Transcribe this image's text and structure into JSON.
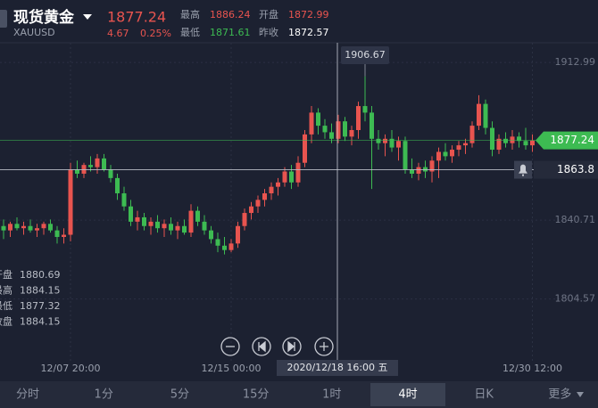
{
  "header": {
    "name": "现货黄金",
    "symbol": "XAUUSD",
    "price": "1877.24",
    "change": "4.67",
    "change_pct": "0.25%",
    "high_label": "最高",
    "high": "1886.24",
    "open_label": "开盘",
    "open": "1872.99",
    "low_label": "最低",
    "low": "1871.61",
    "prev_close_label": "昨收",
    "prev_close": "1872.57"
  },
  "ohlc_info": [
    {
      "label": "开盘",
      "value": "1880.69"
    },
    {
      "label": "最高",
      "value": "1884.15"
    },
    {
      "label": "最低",
      "value": "1877.32"
    },
    {
      "label": "收盘",
      "value": "1884.15"
    }
  ],
  "chart_data": {
    "type": "candlestick",
    "up_color": "#e8544f",
    "down_color": "#3dbb52",
    "ylim": [
      1776.23,
      1922.02
    ],
    "yticks": [
      1912.99,
      1840.71,
      1804.57
    ],
    "grid": true,
    "last_price": 1877.24,
    "alert_price": 1863.8,
    "crosshair_label": "2020/12/18 16:00 五",
    "categories": [
      null,
      null,
      null,
      null,
      null,
      null,
      null,
      null,
      null,
      null,
      "12/07 20:00",
      null,
      null,
      null,
      null,
      null,
      null,
      null,
      null,
      null,
      null,
      null,
      null,
      null,
      null,
      null,
      null,
      null,
      null,
      null,
      null,
      null,
      null,
      null,
      "12/15 00:00",
      null,
      null,
      null,
      null,
      null,
      null,
      null,
      null,
      null,
      null,
      null,
      null,
      null,
      null,
      null,
      null,
      null,
      null,
      null,
      null,
      null,
      null,
      null,
      null,
      null,
      null,
      null,
      null,
      null,
      null,
      null,
      null,
      null,
      null,
      null,
      null,
      null,
      null,
      null,
      null,
      null,
      null,
      null,
      null,
      "12/30 12:00"
    ],
    "candles": [
      [
        1838,
        1841,
        1832,
        1836
      ],
      [
        1836,
        1840,
        1833,
        1839
      ],
      [
        1839,
        1842,
        1836,
        1837
      ],
      [
        1837,
        1840,
        1834,
        1838
      ],
      [
        1838,
        1841,
        1835,
        1836
      ],
      [
        1836,
        1839,
        1833,
        1837
      ],
      [
        1837,
        1840,
        1834,
        1839
      ],
      [
        1839,
        1841,
        1835,
        1836
      ],
      [
        1836,
        1838,
        1830,
        1833
      ],
      [
        1833,
        1837,
        1830,
        1834
      ],
      [
        1834,
        1867,
        1831,
        1864
      ],
      [
        1864,
        1868,
        1860,
        1862
      ],
      [
        1862,
        1867,
        1860,
        1866
      ],
      [
        1866,
        1870,
        1863,
        1865
      ],
      [
        1865,
        1871,
        1862,
        1869
      ],
      [
        1869,
        1871,
        1863,
        1864
      ],
      [
        1864,
        1866,
        1858,
        1860
      ],
      [
        1860,
        1862,
        1850,
        1853
      ],
      [
        1853,
        1856,
        1845,
        1847
      ],
      [
        1847,
        1850,
        1838,
        1840
      ],
      [
        1840,
        1845,
        1836,
        1842
      ],
      [
        1842,
        1844,
        1836,
        1838
      ],
      [
        1838,
        1842,
        1834,
        1840
      ],
      [
        1840,
        1843,
        1835,
        1837
      ],
      [
        1837,
        1841,
        1833,
        1839
      ],
      [
        1839,
        1842,
        1834,
        1836
      ],
      [
        1836,
        1840,
        1832,
        1838
      ],
      [
        1838,
        1841,
        1834,
        1835
      ],
      [
        1835,
        1848,
        1833,
        1845
      ],
      [
        1845,
        1847,
        1838,
        1840
      ],
      [
        1840,
        1843,
        1834,
        1836
      ],
      [
        1836,
        1838,
        1830,
        1832
      ],
      [
        1832,
        1835,
        1826,
        1829
      ],
      [
        1829,
        1833,
        1825,
        1827
      ],
      [
        1827,
        1832,
        1826,
        1830
      ],
      [
        1830,
        1840,
        1828,
        1838
      ],
      [
        1838,
        1846,
        1836,
        1844
      ],
      [
        1844,
        1849,
        1841,
        1847
      ],
      [
        1847,
        1852,
        1844,
        1850
      ],
      [
        1850,
        1855,
        1847,
        1853
      ],
      [
        1853,
        1858,
        1850,
        1856
      ],
      [
        1856,
        1860,
        1852,
        1858
      ],
      [
        1858,
        1865,
        1856,
        1863
      ],
      [
        1863,
        1866,
        1855,
        1858
      ],
      [
        1858,
        1870,
        1856,
        1867
      ],
      [
        1867,
        1882,
        1865,
        1880
      ],
      [
        1880,
        1893,
        1876,
        1890
      ],
      [
        1890,
        1892,
        1880,
        1884
      ],
      [
        1884,
        1887,
        1878,
        1881
      ],
      [
        1881,
        1885,
        1876,
        1878
      ],
      [
        1878,
        1889,
        1876,
        1886
      ],
      [
        1886,
        1888,
        1877,
        1879
      ],
      [
        1879,
        1884,
        1875,
        1882
      ],
      [
        1882,
        1895,
        1878,
        1893
      ],
      [
        1893,
        1906.67,
        1886,
        1890
      ],
      [
        1890,
        1893,
        1855,
        1878
      ],
      [
        1878,
        1882,
        1873,
        1876
      ],
      [
        1876,
        1880,
        1870,
        1878
      ],
      [
        1878,
        1882,
        1872,
        1874
      ],
      [
        1874,
        1879,
        1868,
        1877
      ],
      [
        1877,
        1879,
        1862,
        1864
      ],
      [
        1864,
        1869,
        1860,
        1862
      ],
      [
        1862,
        1867,
        1859,
        1865
      ],
      [
        1865,
        1868,
        1860,
        1863
      ],
      [
        1863,
        1870,
        1858,
        1868
      ],
      [
        1868,
        1874,
        1860,
        1872
      ],
      [
        1872,
        1876,
        1868,
        1870
      ],
      [
        1870,
        1875,
        1867,
        1873
      ],
      [
        1873,
        1877,
        1870,
        1875
      ],
      [
        1875,
        1878,
        1871,
        1876
      ],
      [
        1876,
        1886,
        1874,
        1884
      ],
      [
        1884,
        1898,
        1882,
        1894
      ],
      [
        1894,
        1896,
        1880,
        1883
      ],
      [
        1883,
        1886,
        1870,
        1873
      ],
      [
        1873,
        1880,
        1871,
        1878
      ],
      [
        1878,
        1881,
        1874,
        1876
      ],
      [
        1876,
        1882,
        1873,
        1879
      ],
      [
        1879,
        1881,
        1874,
        1877
      ],
      [
        1877,
        1883,
        1873,
        1875
      ],
      [
        1875,
        1880,
        1872,
        1877.24
      ]
    ]
  },
  "tabs": [
    "分时",
    "1分",
    "5分",
    "15分",
    "1时",
    "4时",
    "日K",
    "更多"
  ],
  "selected_tab": 5
}
